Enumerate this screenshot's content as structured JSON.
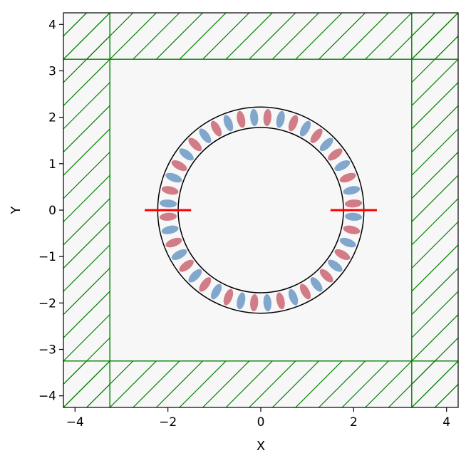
{
  "chart_data": {
    "type": "heatmap",
    "title": "",
    "xlabel": "X",
    "ylabel": "Y",
    "xlim": [
      -4.25,
      4.25
    ],
    "ylim": [
      -4.25,
      4.25
    ],
    "xticks": [
      -4,
      -2,
      0,
      2,
      4
    ],
    "yticks": [
      -4,
      -3,
      -2,
      -1,
      0,
      1,
      2,
      3,
      4
    ],
    "xtick_labels": [
      "−4",
      "−2",
      "0",
      "2",
      "4"
    ],
    "ytick_labels": [
      "−4",
      "−3",
      "−2",
      "−1",
      "0",
      "1",
      "2",
      "3",
      "4"
    ],
    "grid": false,
    "field": {
      "description_colormap": "RdBu",
      "ring_inner_radius": 1.78,
      "ring_outer_radius": 2.22,
      "azimuthal_lobes": 44
    },
    "pml": {
      "thickness": 1.0,
      "boundary": 3.25,
      "color": "#008000"
    },
    "sources": [
      {
        "x": [
          -2.5,
          -1.5
        ],
        "y": 0
      },
      {
        "x": [
          1.5,
          2.5
        ],
        "y": 0
      }
    ],
    "colors": {
      "ring_outline": "#000000",
      "source": "#ff0000",
      "pml_hatch": "#008000",
      "background": "#f7f7f7"
    }
  }
}
